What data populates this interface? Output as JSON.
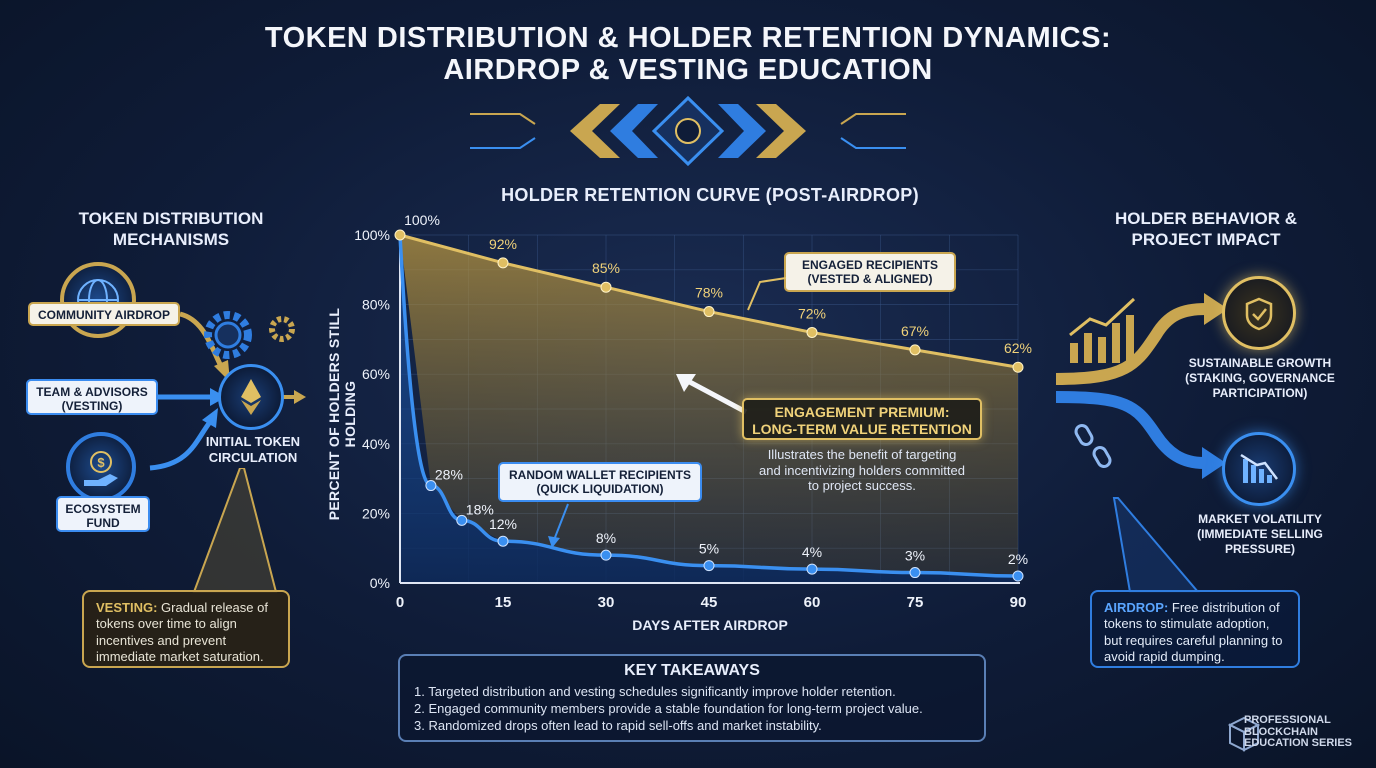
{
  "title_line1": "TOKEN DISTRIBUTION & HOLDER RETENTION DYNAMICS:",
  "title_line2": "AIRDROP & VESTING EDUCATION",
  "left": {
    "heading": "TOKEN DISTRIBUTION\nMECHANISMS",
    "community_airdrop": "COMMUNITY AIRDROP",
    "team_advisors": "TEAM & ADVISORS\n(VESTING)",
    "ecosystem_fund": "ECOSYSTEM\nFUND",
    "initial_circulation": "INITIAL TOKEN\nCIRCULATION",
    "vesting_term": "VESTING:",
    "vesting_text": " Gradual release of tokens over time to align incentives and prevent immediate market saturation."
  },
  "right": {
    "heading": "HOLDER BEHAVIOR &\nPROJECT IMPACT",
    "growth": "SUSTAINABLE GROWTH\n(STAKING, GOVERNANCE\nPARTICIPATION)",
    "volatility": "MARKET VOLATILITY\n(IMMEDIATE SELLING\nPRESSURE)",
    "airdrop_term": "AIRDROP:",
    "airdrop_text": " Free distribution of tokens to stimulate adoption, but requires careful planning to avoid rapid dumping."
  },
  "chart_data": {
    "type": "line",
    "title": "HOLDER RETENTION CURVE (POST-AIRDROP)",
    "xlabel": "DAYS AFTER AIRDROP",
    "ylabel": "PERCENT OF HOLDERS STILL HOLDING",
    "xlim": [
      0,
      90
    ],
    "ylim": [
      0,
      100
    ],
    "x_ticks": [
      0,
      15,
      30,
      45,
      60,
      75,
      90
    ],
    "y_ticks": [
      0,
      20,
      40,
      60,
      80,
      100
    ],
    "y_tick_labels": [
      "0%",
      "20%",
      "40%",
      "60%",
      "80%",
      "100%"
    ],
    "grid": true,
    "series": [
      {
        "name": "ENGAGED RECIPIENTS\n(VESTED & ALIGNED)",
        "color": "#e0bf63",
        "x": [
          0,
          15,
          30,
          45,
          60,
          75,
          90
        ],
        "y": [
          100,
          92,
          85,
          78,
          72,
          67,
          62
        ],
        "labels": [
          "100%",
          "92%",
          "85%",
          "78%",
          "72%",
          "67%",
          "62%"
        ]
      },
      {
        "name": "RANDOM WALLET RECIPIENTS\n(QUICK LIQUIDATION)",
        "color": "#3a8ff0",
        "x": [
          0,
          4.5,
          9,
          15,
          30,
          45,
          60,
          75,
          90
        ],
        "y": [
          100,
          28,
          18,
          12,
          8,
          5,
          4,
          3,
          2
        ],
        "labels": [
          "",
          "28%",
          "18%",
          "12%",
          "8%",
          "5%",
          "4%",
          "3%",
          "2%"
        ]
      }
    ],
    "annotation_title": "ENGAGEMENT PREMIUM:\nLONG-TERM VALUE RETENTION",
    "annotation_text": "Illustrates the benefit of targeting\nand incentivizing holders committed\nto project success."
  },
  "takeaways": {
    "title": "KEY TAKEAWAYS",
    "items": [
      "1.  Targeted distribution and vesting schedules significantly improve holder retention.",
      "2.  Engaged community members provide a stable foundation for long-term project value.",
      "3.  Randomized drops often lead to rapid sell-offs and market instability."
    ]
  },
  "brand": "PROFESSIONAL\nBLOCKCHAIN\nEDUCATION SERIES",
  "colors": {
    "gold": "#e0bf63",
    "blue": "#3a8ff0",
    "background": "#0f1c38"
  }
}
